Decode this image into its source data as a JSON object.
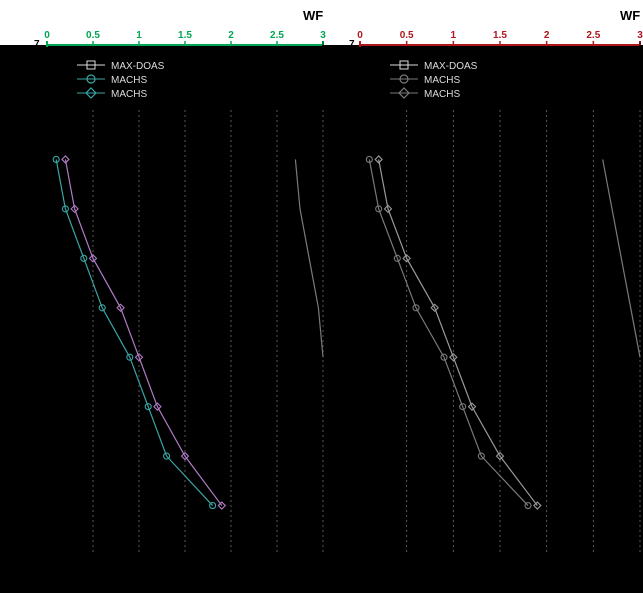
{
  "chart_data": [
    {
      "type": "line",
      "panel": "left",
      "title": "",
      "xlabel": "WF",
      "ylabel": "",
      "xlim": [
        0,
        3
      ],
      "top_left_label": "7",
      "accent": "#00a651",
      "tick_labels": [
        "0",
        "0.5",
        "1",
        "1.5",
        "2",
        "2.5",
        "3"
      ],
      "x_ticks": [
        0,
        0.5,
        1,
        1.5,
        2,
        2.5,
        3
      ],
      "legend": {
        "position": "top-left",
        "entries": [
          {
            "label": "MAX-DOAS",
            "marker": "square",
            "color": "#000000"
          },
          {
            "label": "MACHS",
            "marker": "circle",
            "color": "#3aa6a6"
          },
          {
            "label": "MACHS",
            "marker": "diamond",
            "color": "#3aa6a6"
          }
        ]
      },
      "series": [
        {
          "marker": "circle",
          "color": "#3aa6a6",
          "x": [
            0.1,
            0.2,
            0.4,
            0.6,
            0.9,
            1.1,
            1.3,
            1.8
          ],
          "y": [
            6.5,
            6.0,
            5.5,
            5.0,
            4.5,
            4.0,
            3.5,
            3.0
          ]
        },
        {
          "marker": "diamond",
          "color": "#b07cc6",
          "x": [
            0.2,
            0.3,
            0.5,
            0.8,
            1.0,
            1.2,
            1.5,
            1.9
          ],
          "y": [
            6.5,
            6.0,
            5.5,
            5.0,
            4.5,
            4.0,
            3.5,
            3.0
          ]
        },
        {
          "marker": "none",
          "color": "#7a7a7a",
          "x": [
            2.7,
            2.75,
            2.85,
            2.95,
            3.0
          ],
          "y": [
            6.5,
            6.0,
            5.5,
            5.0,
            4.5
          ]
        }
      ]
    },
    {
      "type": "line",
      "panel": "right",
      "title": "",
      "xlabel": "WF",
      "ylabel": "",
      "xlim": [
        0,
        3
      ],
      "top_left_label": "7",
      "accent": "#b0161c",
      "tick_labels": [
        "0",
        "0.5",
        "1",
        "1.5",
        "2",
        "2.5",
        "3"
      ],
      "x_ticks": [
        0,
        0.5,
        1,
        1.5,
        2,
        2.5,
        3
      ],
      "legend": {
        "position": "top-left",
        "entries": [
          {
            "label": "MAX-DOAS",
            "marker": "square",
            "color": "#000000"
          },
          {
            "label": "MACHS",
            "marker": "circle",
            "color": "#7a7a7a"
          },
          {
            "label": "MACHS",
            "marker": "diamond",
            "color": "#7a7a7a"
          }
        ]
      },
      "series": [
        {
          "marker": "circle",
          "color": "#7a7a7a",
          "x": [
            0.1,
            0.2,
            0.4,
            0.6,
            0.9,
            1.1,
            1.3,
            1.8
          ],
          "y": [
            6.5,
            6.0,
            5.5,
            5.0,
            4.5,
            4.0,
            3.5,
            3.0
          ]
        },
        {
          "marker": "diamond",
          "color": "#9a9a9a",
          "x": [
            0.2,
            0.3,
            0.5,
            0.8,
            1.0,
            1.2,
            1.5,
            1.9
          ],
          "y": [
            6.5,
            6.0,
            5.5,
            5.0,
            4.5,
            4.0,
            3.5,
            3.0
          ]
        },
        {
          "marker": "none",
          "color": "#7a7a7a",
          "x": [
            2.6,
            2.7,
            2.8,
            2.9,
            3.0
          ],
          "y": [
            6.5,
            6.0,
            5.5,
            5.0,
            4.5
          ]
        }
      ]
    }
  ]
}
